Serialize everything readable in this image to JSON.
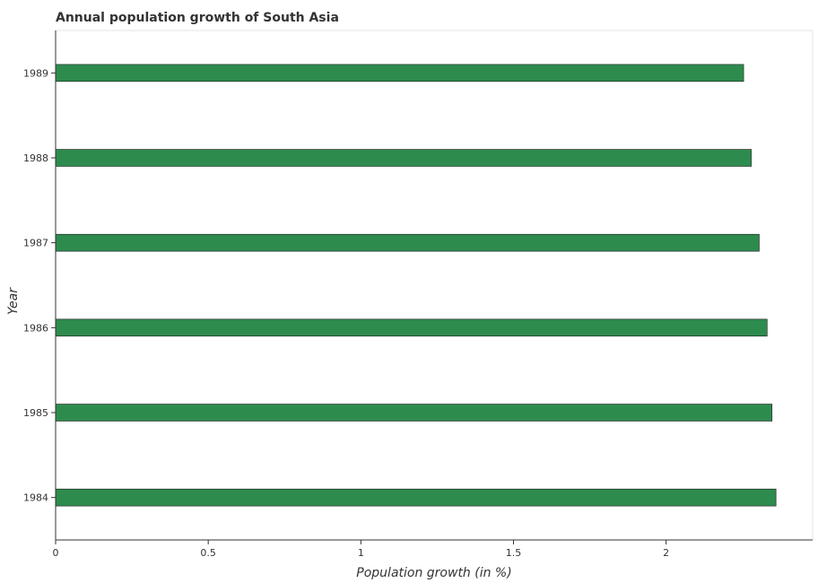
{
  "chart_data": {
    "type": "bar",
    "orientation": "horizontal",
    "title": "Annual population growth of South Asia",
    "xlabel": "Population growth (in %)",
    "ylabel": "Year",
    "categories": [
      "1984",
      "1985",
      "1986",
      "1987",
      "1988",
      "1989"
    ],
    "values": [
      2.36,
      2.347,
      2.331,
      2.305,
      2.279,
      2.254
    ],
    "xlim": [
      0,
      2.48
    ],
    "xticks": [
      "0",
      "0.5",
      "1",
      "1.5",
      "2"
    ],
    "xtick_values": [
      0,
      0.5,
      1,
      1.5,
      2
    ],
    "grid": false,
    "bar_color": "#2e8b4e",
    "bar_edge_color": "#1a1a1a"
  }
}
